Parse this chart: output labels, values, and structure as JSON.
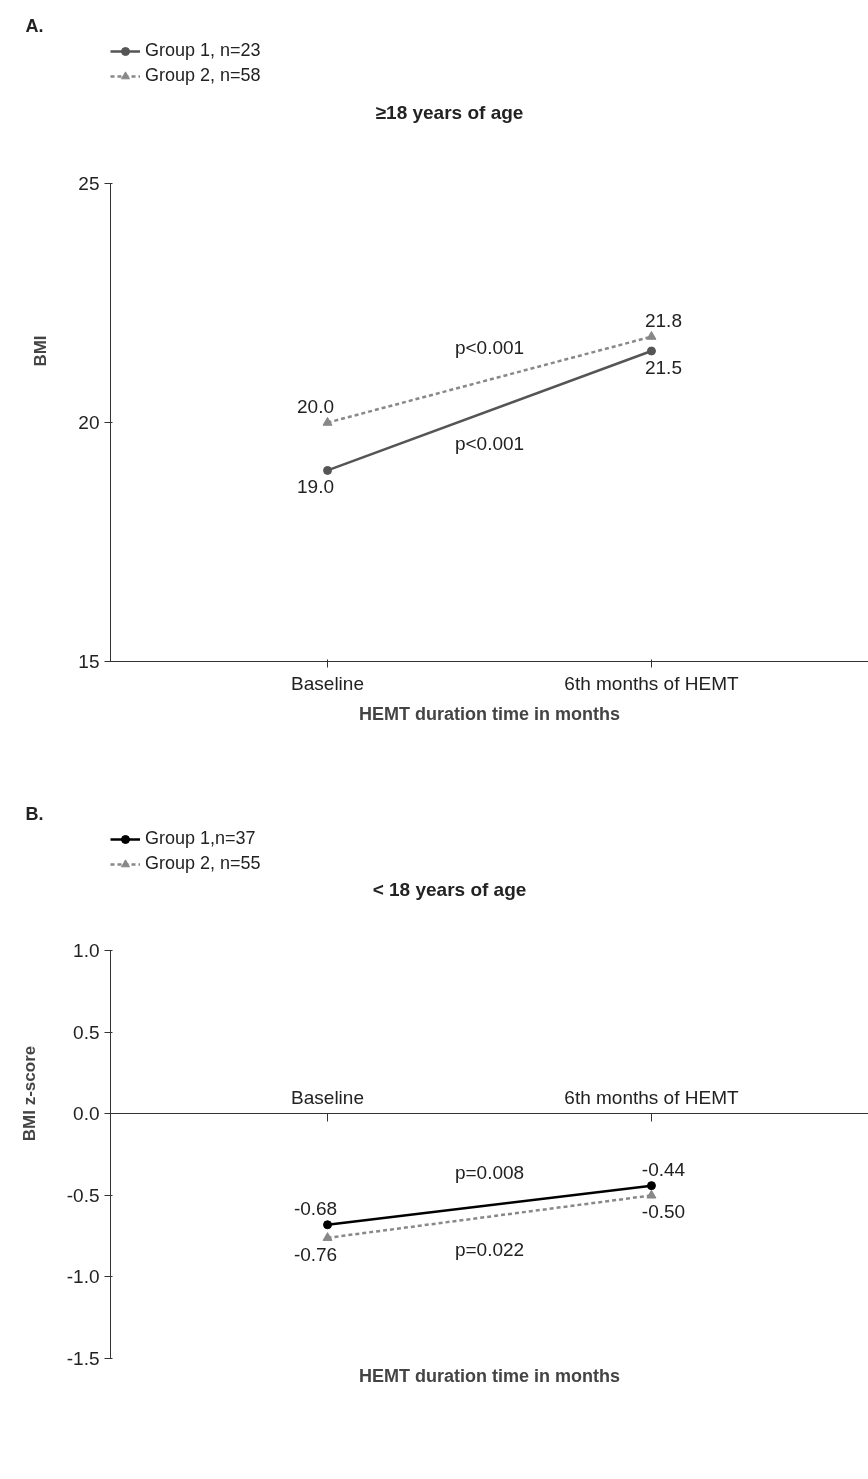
{
  "chart_data": [
    {
      "type": "line",
      "title": "A.",
      "subtitle": "≥18 years of age",
      "xlabel": "HEMT duration time in months",
      "ylabel": "BMI",
      "categories": [
        "Baseline",
        "6th months of HEMT"
      ],
      "series": [
        {
          "name": "Group 1, n=23",
          "color": "#555555",
          "values": [
            19.0,
            21.5
          ],
          "value_labels": [
            "19.0",
            "21.5"
          ],
          "marker": "circle",
          "line_style": "solid"
        },
        {
          "name": "Group 2, n=58",
          "color": "#888888",
          "values": [
            20.0,
            21.8
          ],
          "value_labels": [
            "20.0",
            "21.8"
          ],
          "marker": "triangle",
          "line_style": "dashed"
        }
      ],
      "ylim": [
        15,
        25
      ],
      "yticks": [
        15,
        20,
        25
      ],
      "annotations": [
        "p<0.001",
        "p<0.001"
      ],
      "legend": "top left",
      "grid": false
    },
    {
      "type": "line",
      "title": "B.",
      "subtitle": "< 18 years of age",
      "xlabel": "HEMT duration time in months",
      "ylabel": "BMI z-score",
      "categories": [
        "Baseline",
        "6th months of HEMT"
      ],
      "series": [
        {
          "name": "Group 1,n=37",
          "color": "#000000",
          "values": [
            -0.68,
            -0.44
          ],
          "value_labels": [
            "-0.68",
            "-0.44"
          ],
          "marker": "circle",
          "line_style": "solid"
        },
        {
          "name": "Group 2, n=55",
          "color": "#888888",
          "values": [
            -0.76,
            -0.5
          ],
          "value_labels": [
            "-0.76",
            "-0.50"
          ],
          "marker": "triangle",
          "line_style": "dashed"
        }
      ],
      "ylim": [
        -1.5,
        1.0
      ],
      "yticks": [
        {
          "value": -1.5,
          "label": "-1.5"
        },
        {
          "value": -1.0,
          "label": "-1.0"
        },
        {
          "value": -0.5,
          "label": "-0.5"
        },
        {
          "value": 0,
          "label": "0.0"
        },
        {
          "value": 0.5,
          "label": "0.5"
        },
        {
          "value": 1.0,
          "label": "1.0"
        }
      ],
      "annotations": [
        "p=0.008",
        "p=0.022"
      ],
      "legend": "top left",
      "grid": false
    }
  ]
}
